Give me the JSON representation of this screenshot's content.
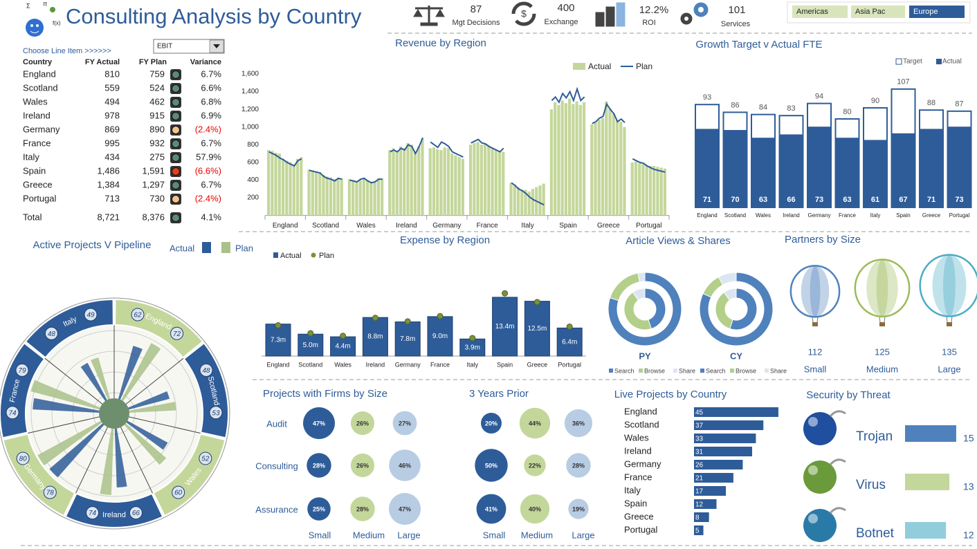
{
  "header": {
    "title": "Consulting Analysis by Country",
    "kpis": [
      {
        "value": "87",
        "label": "Mgt Decisions"
      },
      {
        "value": "400",
        "label": "Exchange"
      },
      {
        "value": "12.2%",
        "label": "ROI"
      },
      {
        "value": "101",
        "label": "Services"
      }
    ],
    "regions": [
      "Americas",
      "Asia Pac",
      "Europe"
    ],
    "selected_region": 2
  },
  "line_items": {
    "prompt": "Choose Line Item >>>>>>",
    "selected": "EBIT",
    "columns": [
      "Country",
      "FY Actual",
      "FY Plan",
      "Variance"
    ],
    "rows": [
      {
        "country": "England",
        "actual": "810",
        "plan": "759",
        "status": "#5b8a78",
        "variance": "6.7%"
      },
      {
        "country": "Scotland",
        "actual": "559",
        "plan": "524",
        "status": "#5b8a78",
        "variance": "6.6%"
      },
      {
        "country": "Wales",
        "actual": "494",
        "plan": "462",
        "status": "#5b8a78",
        "variance": "6.8%"
      },
      {
        "country": "Ireland",
        "actual": "978",
        "plan": "915",
        "status": "#5b8a78",
        "variance": "6.9%"
      },
      {
        "country": "Germany",
        "actual": "869",
        "plan": "890",
        "status": "#f2c38c",
        "variance": "(2.4%)"
      },
      {
        "country": "France",
        "actual": "995",
        "plan": "932",
        "status": "#5b8a78",
        "variance": "6.7%"
      },
      {
        "country": "Italy",
        "actual": "434",
        "plan": "275",
        "status": "#5b8a78",
        "variance": "57.9%"
      },
      {
        "country": "Spain",
        "actual": "1,486",
        "plan": "1,591",
        "status": "#e0401c",
        "variance": "(6.6%)"
      },
      {
        "country": "Greece",
        "actual": "1,384",
        "plan": "1,297",
        "status": "#5b8a78",
        "variance": "6.7%"
      },
      {
        "country": "Portugal",
        "actual": "713",
        "plan": "730",
        "status": "#f2c38c",
        "variance": "(2.4%)"
      }
    ],
    "total": {
      "country": "Total",
      "actual": "8,721",
      "plan": "8,376",
      "status": "#5b8a78",
      "variance": "4.1%"
    }
  },
  "revenue": {
    "type": "bar",
    "title": "Revenue by Region",
    "categories": [
      "England",
      "Scotland",
      "Wales",
      "Ireland",
      "Germany",
      "France",
      "Italy",
      "Spain",
      "Greece",
      "Portugal"
    ],
    "ylim": [
      0,
      1600
    ],
    "yticks": [
      200,
      400,
      600,
      800,
      {
        "value": 1000,
        "label": "1,000"
      },
      {
        "value": 1200,
        "label": "1,200"
      },
      {
        "value": 1400,
        "label": "1,400"
      },
      {
        "value": 1600,
        "label": "1,600"
      }
    ],
    "series": [
      {
        "name": "Actual",
        "color": "#c4d79b",
        "values": [
          [
            740,
            730,
            710,
            700,
            640,
            620,
            600,
            580,
            640,
            660
          ],
          [
            520,
            510,
            500,
            490,
            460,
            440,
            430,
            410,
            420,
            420
          ],
          [
            410,
            400,
            390,
            400,
            420,
            400,
            380,
            390,
            420,
            420
          ],
          [
            740,
            760,
            730,
            780,
            760,
            820,
            800,
            720,
            780,
            870
          ],
          [
            760,
            770,
            750,
            740,
            770,
            760,
            700,
            680,
            660,
            640
          ],
          [
            800,
            820,
            830,
            800,
            810,
            790,
            760,
            750,
            730,
            720
          ],
          [
            370,
            350,
            320,
            290,
            290,
            270,
            300,
            320,
            340,
            360
          ],
          [
            1200,
            1280,
            1250,
            1300,
            1270,
            1320,
            1260,
            1290,
            1250,
            1280
          ],
          [
            1030,
            1050,
            1080,
            1100,
            1290,
            1210,
            1150,
            1080,
            1060,
            1000
          ],
          [
            600,
            610,
            590,
            580,
            570,
            560,
            560,
            550,
            540,
            530
          ]
        ]
      },
      {
        "name": "Plan",
        "color": "#2e5c99",
        "values": [
          [
            720,
            700,
            680,
            650,
            630,
            600,
            580,
            560,
            620,
            640
          ],
          [
            510,
            500,
            490,
            480,
            440,
            420,
            410,
            390,
            420,
            410
          ],
          [
            400,
            390,
            380,
            410,
            420,
            390,
            370,
            380,
            410,
            410
          ],
          [
            720,
            740,
            720,
            760,
            740,
            800,
            780,
            700,
            780,
            880
          ],
          [
            830,
            800,
            770,
            830,
            810,
            780,
            720,
            700,
            680,
            660
          ],
          [
            820,
            840,
            860,
            820,
            810,
            780,
            760,
            740,
            720,
            760
          ],
          [
            370,
            340,
            300,
            280,
            250,
            210,
            180,
            160,
            140,
            120
          ],
          [
            1300,
            1340,
            1280,
            1380,
            1330,
            1400,
            1300,
            1430,
            1300,
            1340
          ],
          [
            1040,
            1060,
            1100,
            1120,
            1260,
            1200,
            1150,
            1060,
            1090,
            1050
          ],
          [
            640,
            620,
            600,
            590,
            560,
            540,
            520,
            510,
            500,
            490
          ]
        ]
      }
    ]
  },
  "fte": {
    "type": "bar",
    "title": "Growth Target v Actual FTE",
    "categories": [
      "England",
      "Scotland",
      "Wales",
      "Ireland",
      "Germany",
      "France",
      "Italy",
      "Spain",
      "Greece",
      "Portugal"
    ],
    "series": [
      {
        "name": "Target",
        "color": "#ffffff",
        "values": [
          93,
          86,
          84,
          83,
          94,
          80,
          90,
          107,
          88,
          87
        ]
      },
      {
        "name": "Actual",
        "color": "#2e5c99",
        "values": [
          71,
          70,
          63,
          66,
          73,
          63,
          61,
          67,
          71,
          73
        ]
      }
    ]
  },
  "pipeline": {
    "type": "radial",
    "title": "Active Projects V Pipeline",
    "categories": [
      "England",
      "Scotland",
      "Wales",
      "Ireland",
      "Germany",
      "France",
      "Italy"
    ],
    "segment_colors": [
      "#c4d79b",
      "#2e5c99",
      "#c4d79b",
      "#2e5c99",
      "#c4d79b",
      "#2e5c99",
      "#2e5c99"
    ],
    "series": [
      {
        "name": "Actual",
        "color": "#2e5c99",
        "values": [
          62,
          48,
          52,
          66,
          78,
          74,
          48
        ]
      },
      {
        "name": "Plan",
        "color": "#a9c18a",
        "values": [
          72,
          53,
          60,
          74,
          80,
          79,
          49
        ]
      }
    ]
  },
  "expense": {
    "type": "bar",
    "title": "Expense by Region",
    "categories": [
      "England",
      "Scotland",
      "Wales",
      "Ireland",
      "Germany",
      "France",
      "Italy",
      "Spain",
      "Greece",
      "Portugal"
    ],
    "series": [
      {
        "name": "Actual",
        "color": "#2e5c99",
        "values": [
          7.3,
          5.0,
          4.4,
          8.8,
          7.8,
          9.0,
          3.9,
          13.4,
          12.5,
          6.4
        ],
        "value_labels": [
          "7.3m",
          "5.0m",
          "4.4m",
          "8.8m",
          "7.8m",
          "9.0m",
          "3.9m",
          "13.4m",
          "12.5m",
          "6.4m"
        ]
      },
      {
        "name": "Plan",
        "color": "#77933c",
        "values": [
          7.0,
          5.2,
          4.6,
          8.7,
          7.9,
          9.1,
          4.1,
          14.3,
          12.3,
          6.7
        ]
      }
    ]
  },
  "articles": {
    "type": "donut",
    "title": "Article Views & Shares",
    "series": [
      {
        "name": "Search",
        "color": "#4f81bd"
      },
      {
        "name": "Browse",
        "color": "#b3cf8a"
      },
      {
        "name": "Share",
        "color": "#dce6f2"
      }
    ],
    "charts": [
      {
        "label": "PY",
        "rings": [
          [
            80,
            17,
            3
          ],
          [
            45,
            45,
            10
          ]
        ]
      },
      {
        "label": "CY",
        "rings": [
          [
            82,
            10,
            8
          ],
          [
            55,
            35,
            10
          ]
        ]
      }
    ]
  },
  "partners": {
    "type": "balloon",
    "title": "Partners by Size",
    "categories": [
      "Small",
      "Medium",
      "Large"
    ],
    "values": [
      112,
      125,
      135
    ],
    "colors": [
      "#4f81bd",
      "#9bbb59",
      "#4bacc6"
    ]
  },
  "firms": {
    "type": "bubble",
    "title": "Projects with Firms by Size",
    "prior_title": "3 Years Prior",
    "rows": [
      "Audit",
      "Consulting",
      "Assurance"
    ],
    "columns": [
      "Small",
      "Medium",
      "Large"
    ],
    "colors": [
      "#2e5c99",
      "#c4d79b",
      "#b8cce4"
    ],
    "current": {
      "values": [
        [
          47,
          26,
          27
        ],
        [
          28,
          26,
          46
        ],
        [
          25,
          28,
          47
        ]
      ],
      "value_labels": [
        [
          "47%",
          "26%",
          "27%"
        ],
        [
          "28%",
          "26%",
          "46%"
        ],
        [
          "25%",
          "28%",
          "47%"
        ]
      ]
    },
    "prior": {
      "values": [
        [
          20,
          44,
          36
        ],
        [
          50,
          22,
          28
        ],
        [
          41,
          40,
          19
        ]
      ],
      "value_labels": [
        [
          "20%",
          "44%",
          "36%"
        ],
        [
          "50%",
          "22%",
          "28%"
        ],
        [
          "41%",
          "40%",
          "19%"
        ]
      ]
    }
  },
  "live": {
    "type": "bar",
    "title": "Live Projects by Country",
    "categories": [
      "England",
      "Scotland",
      "Wales",
      "Ireland",
      "Germany",
      "France",
      "Italy",
      "Spain",
      "Greece",
      "Portugal"
    ],
    "values": [
      45,
      37,
      33,
      31,
      26,
      21,
      17,
      12,
      8,
      5
    ],
    "color": "#2e5c99"
  },
  "security": {
    "type": "bar",
    "title": "Security by Threat",
    "categories": [
      "Trojan",
      "Virus",
      "Botnet"
    ],
    "values": [
      15,
      13,
      12
    ],
    "colors": [
      "#4f81bd",
      "#c4d79b",
      "#92cddc"
    ]
  }
}
